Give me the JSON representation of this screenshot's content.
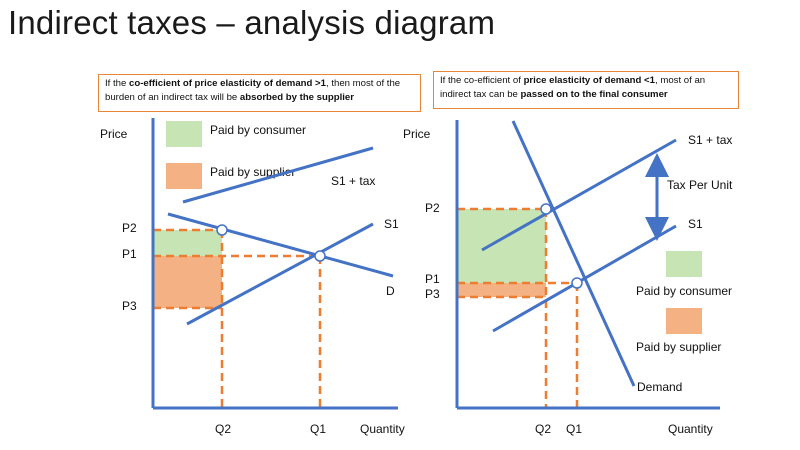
{
  "title": "Indirect taxes – analysis diagram",
  "notes": {
    "left": {
      "t1": "If the ",
      "b1": "co-efficient of price elasticity of demand >1",
      "t2": ", then most of the burden of an indirect tax will be ",
      "b2": "absorbed by the supplier"
    },
    "right": {
      "t1": "If the co-efficient of ",
      "b1": "price elasticity of demand <1",
      "t2": ", most of an indirect tax can be ",
      "b2": "passed on to the final consumer"
    }
  },
  "left_chart": {
    "y_axis_label": "Price",
    "x_axis_label": "Quantity",
    "legend": {
      "consumer": "Paid by consumer",
      "supplier": "Paid by supplier"
    },
    "curves": {
      "s1_tax": "S1 + tax",
      "s1": "S1",
      "d": "D"
    },
    "price_labels": {
      "p2": "P2",
      "p1": "P1",
      "p3": "P3"
    },
    "quantity_labels": {
      "q2": "Q2",
      "q1": "Q1"
    }
  },
  "right_chart": {
    "y_axis_label": "Price",
    "x_axis_label": "Quantity",
    "legend": {
      "consumer": "Paid by consumer",
      "supplier": "Paid by supplier"
    },
    "curves": {
      "s1_tax": "S1 + tax",
      "s1": "S1",
      "demand": "Demand"
    },
    "tax_label": "Tax Per Unit",
    "price_labels": {
      "p2": "P2",
      "p1": "P1",
      "p3": "P3"
    },
    "quantity_labels": {
      "q2": "Q2",
      "q1": "Q1"
    }
  },
  "colors": {
    "axis": "#4472c4",
    "curve": "#4472c4",
    "dashed": "#ed7d31",
    "consumer_fill": "#c6e4b4",
    "supplier_fill": "#f4b183",
    "note_border": "#e8863a"
  }
}
